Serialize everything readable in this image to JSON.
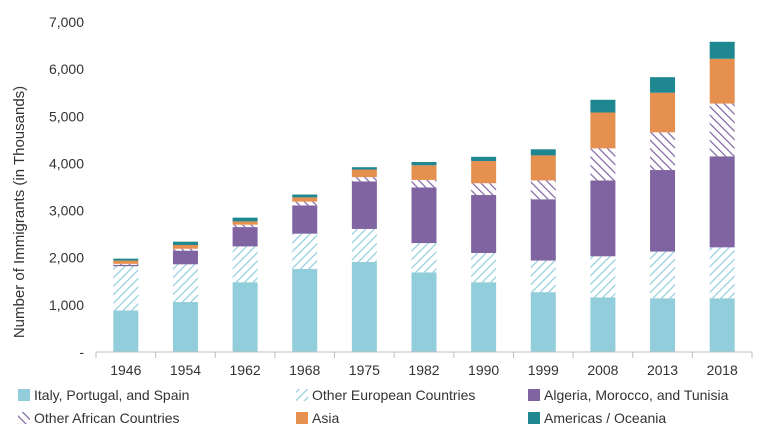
{
  "chart_data": {
    "type": "bar",
    "stacked": true,
    "ylabel": "Number of Immigrants (in Thousands)",
    "xlabel": "",
    "ylim": [
      0,
      7000
    ],
    "yticks": [
      {
        "value": 0,
        "label": "-"
      },
      {
        "value": 1000,
        "label": "1,000"
      },
      {
        "value": 2000,
        "label": "2,000"
      },
      {
        "value": 3000,
        "label": "3,000"
      },
      {
        "value": 4000,
        "label": "4,000"
      },
      {
        "value": 5000,
        "label": "5,000"
      },
      {
        "value": 6000,
        "label": "6,000"
      },
      {
        "value": 7000,
        "label": "7,000"
      }
    ],
    "grid": false,
    "legend_position": "bottom",
    "categories": [
      "1946",
      "1954",
      "1962",
      "1968",
      "1975",
      "1982",
      "1990",
      "1999",
      "2008",
      "2013",
      "2018"
    ],
    "series": [
      {
        "name": "Italy, Portugal, and Spain",
        "color": "#92cddc",
        "pattern": "solid",
        "values": [
          880,
          1060,
          1480,
          1760,
          1910,
          1690,
          1480,
          1270,
          1160,
          1140,
          1140
        ]
      },
      {
        "name": "Other European Countries",
        "color": "#92cddc",
        "pattern": "hatch",
        "values": [
          940,
          800,
          760,
          750,
          700,
          620,
          620,
          670,
          870,
          990,
          1080
        ]
      },
      {
        "name": "Algeria, Morocco, and Tunisia",
        "color": "#8064a2",
        "pattern": "solid",
        "values": [
          30,
          290,
          410,
          600,
          1010,
          1180,
          1230,
          1300,
          1610,
          1730,
          1930
        ]
      },
      {
        "name": "Other African Countries",
        "color": "#8064a2",
        "pattern": "hatch",
        "values": [
          20,
          40,
          50,
          80,
          90,
          160,
          250,
          400,
          680,
          800,
          1120
        ]
      },
      {
        "name": "Asia",
        "color": "#e6904f",
        "pattern": "solid",
        "values": [
          70,
          80,
          70,
          90,
          160,
          310,
          470,
          530,
          760,
          840,
          950
        ]
      },
      {
        "name": "Americas / Oceania",
        "color": "#1f8790",
        "pattern": "solid",
        "values": [
          40,
          70,
          80,
          60,
          50,
          70,
          90,
          130,
          270,
          330,
          360
        ]
      }
    ]
  }
}
